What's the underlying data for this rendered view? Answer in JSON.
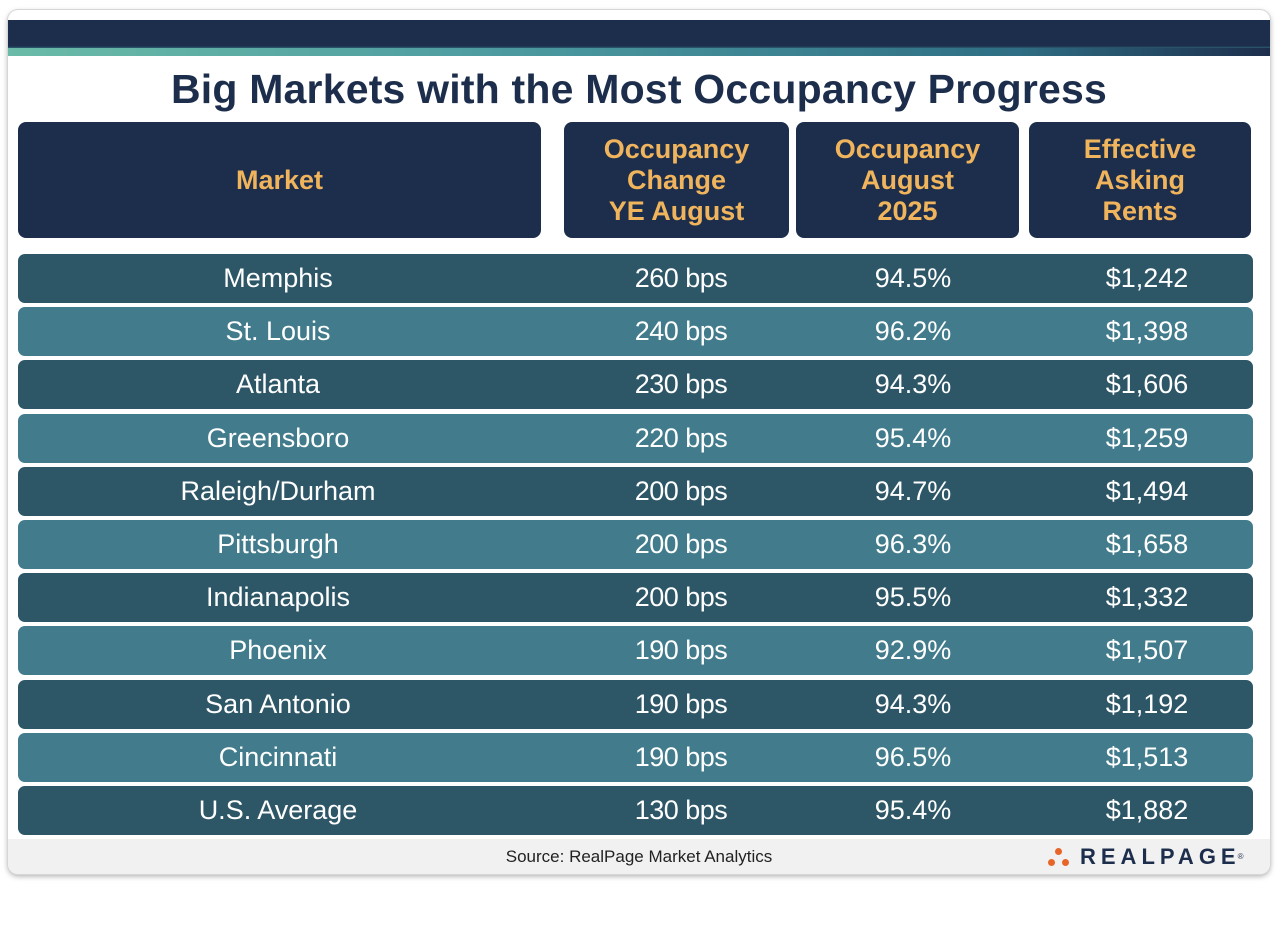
{
  "title": "Big Markets with the Most Occupancy Progress",
  "headers": {
    "market": "Market",
    "occupancy_change": [
      "Occupancy",
      "Change",
      "YE August"
    ],
    "occupancy": [
      "Occupancy",
      "August",
      "2025"
    ],
    "rents": [
      "Effective",
      "Asking",
      "Rents"
    ]
  },
  "rows": [
    {
      "market": "Memphis",
      "change": "260 bps",
      "occupancy": "94.5%",
      "rent": "$1,242"
    },
    {
      "market": "St. Louis",
      "change": "240 bps",
      "occupancy": "96.2%",
      "rent": "$1,398"
    },
    {
      "market": "Atlanta",
      "change": "230 bps",
      "occupancy": "94.3%",
      "rent": "$1,606"
    },
    {
      "market": "Greensboro",
      "change": "220 bps",
      "occupancy": "95.4%",
      "rent": "$1,259"
    },
    {
      "market": "Raleigh/Durham",
      "change": "200 bps",
      "occupancy": "94.7%",
      "rent": "$1,494"
    },
    {
      "market": "Pittsburgh",
      "change": "200 bps",
      "occupancy": "96.3%",
      "rent": "$1,658"
    },
    {
      "market": "Indianapolis",
      "change": "200 bps",
      "occupancy": "95.5%",
      "rent": "$1,332"
    },
    {
      "market": "Phoenix",
      "change": "190 bps",
      "occupancy": "92.9%",
      "rent": "$1,507"
    },
    {
      "market": "San Antonio",
      "change": "190 bps",
      "occupancy": "94.3%",
      "rent": "$1,192"
    },
    {
      "market": "Cincinnati",
      "change": "190 bps",
      "occupancy": "96.5%",
      "rent": "$1,513"
    },
    {
      "market": "U.S. Average",
      "change": "130 bps",
      "occupancy": "95.4%",
      "rent": "$1,882"
    }
  ],
  "source": "Source: RealPage Market Analytics",
  "logo": {
    "text": "REALPAGE",
    "mark": "®",
    "icon": "realpage-dots-icon"
  },
  "colors": {
    "navy": "#1d2e4c",
    "header_text": "#f0b45c",
    "row_dark": "#2d5667",
    "row_light": "#427c8c",
    "logo_orange": "#e8652a"
  },
  "chart_data": {
    "type": "table",
    "title": "Big Markets with the Most Occupancy Progress",
    "columns": [
      "Market",
      "Occupancy Change YE August",
      "Occupancy August 2025",
      "Effective Asking Rents"
    ],
    "rows": [
      [
        "Memphis",
        "260 bps",
        "94.5%",
        "$1,242"
      ],
      [
        "St. Louis",
        "240 bps",
        "96.2%",
        "$1,398"
      ],
      [
        "Atlanta",
        "230 bps",
        "94.3%",
        "$1,606"
      ],
      [
        "Greensboro",
        "220 bps",
        "95.4%",
        "$1,259"
      ],
      [
        "Raleigh/Durham",
        "200 bps",
        "94.7%",
        "$1,494"
      ],
      [
        "Pittsburgh",
        "200 bps",
        "96.3%",
        "$1,658"
      ],
      [
        "Indianapolis",
        "200 bps",
        "95.5%",
        "$1,332"
      ],
      [
        "Phoenix",
        "190 bps",
        "92.9%",
        "$1,507"
      ],
      [
        "San Antonio",
        "190 bps",
        "94.3%",
        "$1,192"
      ],
      [
        "Cincinnati",
        "190 bps",
        "96.5%",
        "$1,513"
      ],
      [
        "U.S. Average",
        "130 bps",
        "95.4%",
        "$1,882"
      ]
    ],
    "source": "Source: RealPage Market Analytics"
  }
}
